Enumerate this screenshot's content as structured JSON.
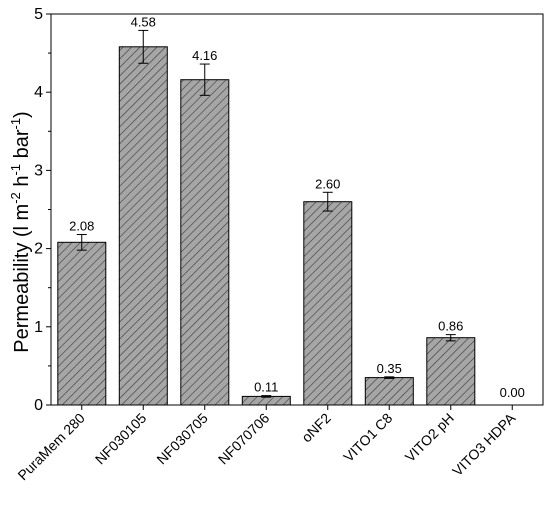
{
  "chart_data": {
    "type": "bar",
    "categories": [
      "PuraMem 280",
      "NF030105",
      "NF030705",
      "NF070706",
      "oNF2",
      "VITO1 C8",
      "VITO2 pH",
      "VITO3 HDPA"
    ],
    "values": [
      2.08,
      4.58,
      4.16,
      0.11,
      2.6,
      0.35,
      0.86,
      0.0
    ],
    "data_labels": [
      "2.08",
      "4.58",
      "4.16",
      "0.11",
      "2.60",
      "0.35",
      "0.86",
      "0.00"
    ],
    "errors": [
      0.1,
      0.21,
      0.2,
      0.01,
      0.12,
      0.01,
      0.04,
      0.0
    ],
    "ylim": [
      0,
      5
    ],
    "yticks": [
      0,
      1,
      2,
      3,
      4,
      5
    ],
    "ylabel": {
      "base": "Permeability (l m",
      "exp1": "-2",
      "mid1": " h",
      "exp2": "-1",
      "mid2": " bar",
      "exp3": "-1",
      "end": ")"
    },
    "bar_fill": "#a6a6a6",
    "hatch_color": "#3a3a3a",
    "grid": false
  }
}
